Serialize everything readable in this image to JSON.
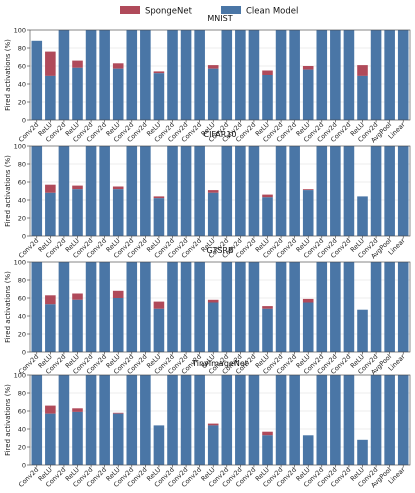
{
  "colors": {
    "sponge": "#b04a5a",
    "clean": "#4a76a6",
    "grid": "#e6e6e6"
  },
  "legend": [
    {
      "label": "SpongeNet",
      "key": "sponge"
    },
    {
      "label": "Clean Model",
      "key": "clean"
    }
  ],
  "chart_data": {
    "type": "bar",
    "stacked": true,
    "legend_position": "top-center",
    "categories": [
      "Conv2d",
      "ReLU",
      "Conv2d",
      "ReLU",
      "Conv2d",
      "Conv2d",
      "ReLU",
      "Conv2d",
      "Conv2d",
      "ReLU",
      "Conv2d",
      "Conv2d",
      "Conv2d",
      "ReLU",
      "Conv2d",
      "Conv2d",
      "Conv2d",
      "ReLU",
      "Conv2d",
      "Conv2d",
      "ReLU",
      "Conv2d",
      "Conv2d",
      "Conv2d",
      "ReLU",
      "Conv2d",
      "AvgPool",
      "Linear"
    ],
    "ylabel": "Fired activations (%)",
    "ylim": [
      0,
      100
    ],
    "yticks": [
      0,
      20,
      40,
      60,
      80,
      100
    ],
    "grid": true,
    "panels": [
      {
        "title": "MNIST",
        "clean": [
          88,
          49,
          100,
          58,
          100,
          100,
          57,
          100,
          100,
          52,
          100,
          100,
          100,
          57,
          100,
          100,
          100,
          50,
          100,
          100,
          56,
          100,
          100,
          100,
          49,
          100,
          100,
          100
        ],
        "sponge": [
          88,
          76,
          100,
          66,
          100,
          100,
          63,
          100,
          100,
          54,
          100,
          100,
          100,
          61,
          100,
          100,
          100,
          55,
          100,
          100,
          60,
          100,
          100,
          100,
          61,
          100,
          100,
          100
        ]
      },
      {
        "title": "CIFAR10",
        "clean": [
          100,
          48,
          100,
          52,
          100,
          100,
          52,
          100,
          100,
          42,
          100,
          100,
          100,
          48,
          100,
          100,
          100,
          43,
          100,
          100,
          51,
          100,
          100,
          100,
          44,
          100,
          100,
          100
        ],
        "sponge": [
          100,
          57,
          100,
          56,
          100,
          100,
          55,
          100,
          100,
          44,
          100,
          100,
          100,
          51,
          100,
          100,
          100,
          46,
          100,
          100,
          52,
          100,
          100,
          100,
          44,
          100,
          100,
          100
        ]
      },
      {
        "title": "GTSRB",
        "clean": [
          100,
          53,
          100,
          58,
          100,
          100,
          60,
          100,
          100,
          48,
          100,
          100,
          100,
          55,
          100,
          100,
          100,
          48,
          100,
          100,
          55,
          100,
          100,
          100,
          47,
          100,
          100,
          100
        ],
        "sponge": [
          100,
          63,
          100,
          65,
          100,
          100,
          68,
          100,
          100,
          56,
          100,
          100,
          100,
          58,
          100,
          100,
          100,
          51,
          100,
          100,
          59,
          100,
          100,
          100,
          47,
          100,
          100,
          100
        ]
      },
      {
        "title": "TinyImageNet",
        "clean": [
          100,
          57,
          100,
          59,
          100,
          100,
          57,
          100,
          100,
          44,
          100,
          100,
          100,
          44,
          100,
          100,
          100,
          33,
          100,
          100,
          33,
          100,
          100,
          100,
          28,
          100,
          100,
          100
        ],
        "sponge": [
          100,
          66,
          100,
          63,
          100,
          100,
          58,
          100,
          100,
          44,
          100,
          100,
          100,
          46,
          100,
          100,
          100,
          37,
          100,
          100,
          33,
          100,
          100,
          100,
          28,
          100,
          100,
          100
        ]
      }
    ]
  }
}
